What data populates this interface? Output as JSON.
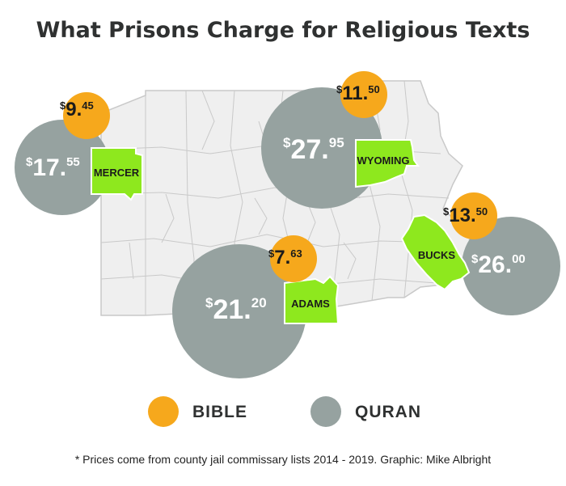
{
  "title": "What Prisons Charge for Religious Texts",
  "colors": {
    "bible": "#f6a81c",
    "quran": "#96a2a0",
    "county": "#8ee81e",
    "county_outline": "#ffffff",
    "state_fill": "#efefef",
    "state_lines": "#c9c9c9",
    "text": "#2f3131"
  },
  "counties": [
    {
      "name": "MERCER",
      "bible": {
        "currency": "$",
        "dollars": "9",
        "cents": "45"
      },
      "quran": {
        "currency": "$",
        "dollars": "17",
        "cents": "55"
      }
    },
    {
      "name": "WYOMING",
      "bible": {
        "currency": "$",
        "dollars": "11",
        "cents": "50"
      },
      "quran": {
        "currency": "$",
        "dollars": "27",
        "cents": "95"
      }
    },
    {
      "name": "BUCKS",
      "bible": {
        "currency": "$",
        "dollars": "13",
        "cents": "50"
      },
      "quran": {
        "currency": "$",
        "dollars": "26",
        "cents": "00"
      }
    },
    {
      "name": "ADAMS",
      "bible": {
        "currency": "$",
        "dollars": "7",
        "cents": "63"
      },
      "quran": {
        "currency": "$",
        "dollars": "21",
        "cents": "20"
      }
    }
  ],
  "legend": [
    {
      "label": "BIBLE",
      "color": "#f6a81c"
    },
    {
      "label": "QURAN",
      "color": "#96a2a0"
    }
  ],
  "footnote": "* Prices come from county jail commissary lists 2014 - 2019. Graphic: Mike Albright"
}
